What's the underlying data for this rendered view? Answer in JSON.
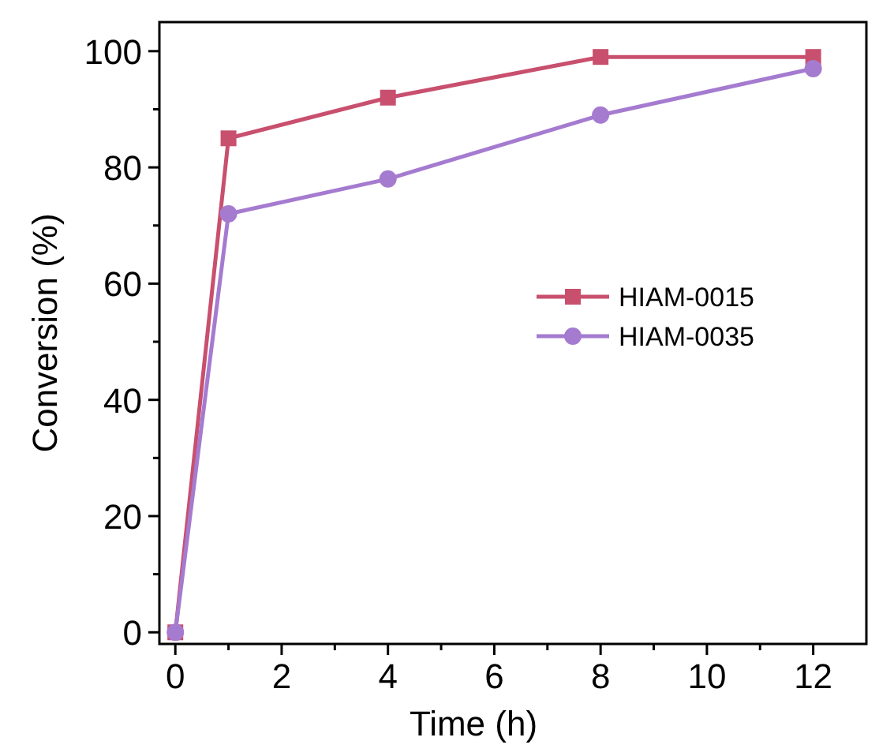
{
  "chart_data": {
    "type": "line",
    "xlabel": "Time (h)",
    "ylabel": "Conversion (%)",
    "x": [
      0,
      1,
      4,
      8,
      12
    ],
    "series": [
      {
        "name": "HIAM-0015",
        "color": "#c8506e",
        "marker": "square",
        "values": [
          0,
          85,
          92,
          99,
          99
        ]
      },
      {
        "name": "HIAM-0035",
        "color": "#a57bd0",
        "marker": "circle",
        "values": [
          0,
          72,
          78,
          89,
          97
        ]
      }
    ],
    "xlim": [
      -0.3,
      13
    ],
    "ylim": [
      -2,
      105
    ],
    "xticks": [
      0,
      {
        "value": 1,
        "label": null
      },
      2,
      {
        "value": 3,
        "label": null
      },
      4,
      {
        "value": 5,
        "label": null
      },
      6,
      {
        "value": 7,
        "label": null
      },
      8,
      {
        "value": 9,
        "label": null
      },
      10,
      {
        "value": 11,
        "label": null
      },
      12
    ],
    "yticks": [
      0,
      {
        "value": 10,
        "label": null
      },
      20,
      {
        "value": 30,
        "label": null
      },
      40,
      {
        "value": 50,
        "label": null
      },
      60,
      {
        "value": 70,
        "label": null
      },
      80,
      {
        "value": 90,
        "label": null
      },
      100
    ],
    "grid": false,
    "legend": "right",
    "line_style": "solid"
  }
}
